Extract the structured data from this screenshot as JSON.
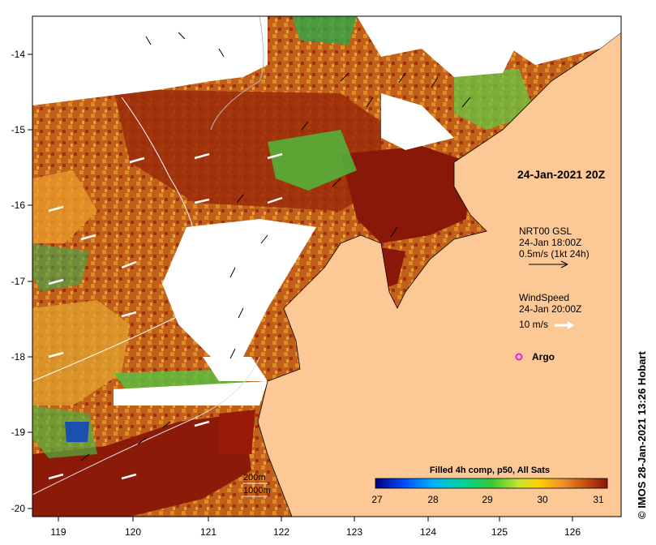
{
  "map": {
    "title": "24-Jan-2021 20Z",
    "longitude_ticks": [
      "119",
      "120",
      "121",
      "122",
      "123",
      "124",
      "125",
      "126"
    ],
    "latitude_ticks": [
      "-14",
      "-15",
      "-16",
      "-17",
      "-18",
      "-19",
      "-20"
    ],
    "current_legend": {
      "line1": "NRT00 GSL",
      "line2": "24-Jan 18:00Z",
      "line3": "0.5m/s (1kt 24h)"
    },
    "wind_legend": {
      "line1": "WindSpeed",
      "line2": "24-Jan 20:00Z",
      "line3": "10 m/s"
    },
    "argo_label": "Argo",
    "isobaths": {
      "shallow": "200m",
      "deep": "1000m"
    },
    "colorbar": {
      "title": "Filled 4h comp, p50, All Sats",
      "ticks": [
        "27",
        "28",
        "29",
        "30",
        "31"
      ]
    },
    "credit": "© IMOS 28-Jan-2021 13:26 Hobart",
    "colors": {
      "land": "#fcc896",
      "ocean_warm": "#b64a0c",
      "ocean_hot": "#8c1a08",
      "argo": "#e01ee0",
      "wind_arrow": "#ffffff",
      "current_arrow": "#000000"
    }
  }
}
